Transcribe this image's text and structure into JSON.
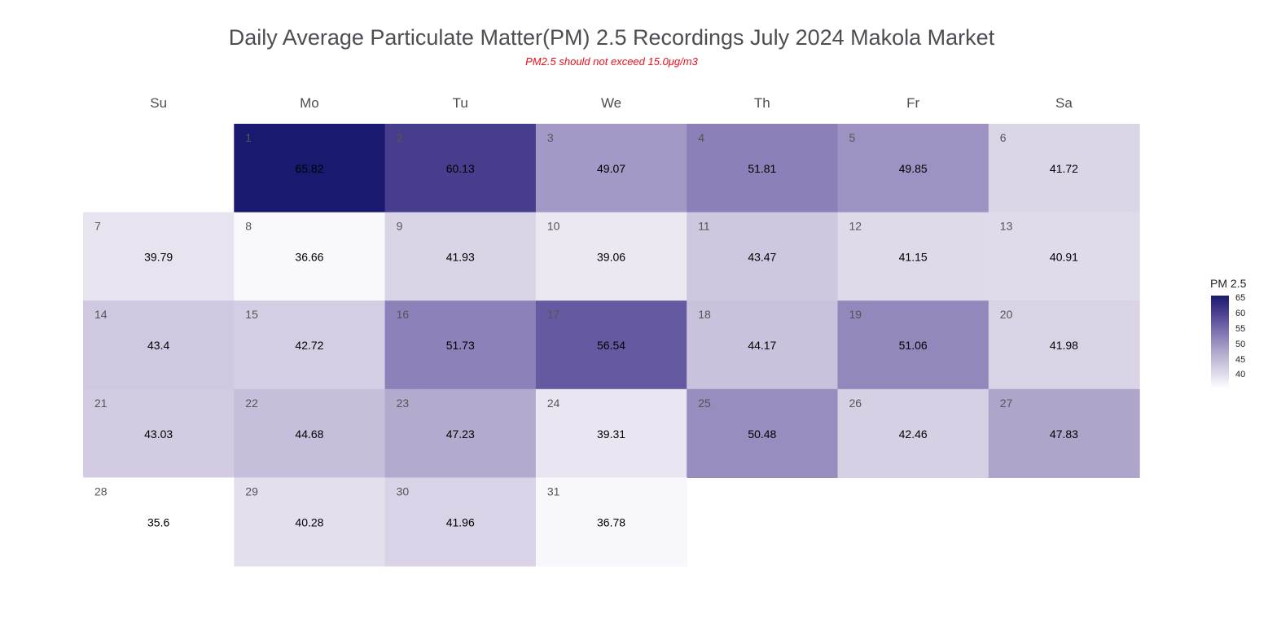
{
  "title": "Daily Average Particulate Matter(PM) 2.5 Recordings July 2024 Makola Market",
  "subtitle": "PM2.5 should not exceed 15.0μg/m3",
  "chart_data": {
    "type": "heatmap",
    "title": "Daily Average Particulate Matter(PM) 2.5 Recordings July 2024 Makola Market",
    "subtitle": "PM2.5 should not exceed 15.0μg/m3",
    "weekdays": [
      "Su",
      "Mo",
      "Tu",
      "We",
      "Th",
      "Fr",
      "Sa"
    ],
    "first_weekday_index": 1,
    "days": [
      1,
      2,
      3,
      4,
      5,
      6,
      7,
      8,
      9,
      10,
      11,
      12,
      13,
      14,
      15,
      16,
      17,
      18,
      19,
      20,
      21,
      22,
      23,
      24,
      25,
      26,
      27,
      28,
      29,
      30,
      31
    ],
    "values": [
      65.82,
      60.13,
      49.07,
      51.81,
      49.85,
      41.72,
      39.79,
      36.66,
      41.93,
      39.06,
      43.47,
      41.15,
      40.91,
      43.4,
      42.72,
      51.73,
      56.54,
      44.17,
      51.06,
      41.98,
      43.03,
      44.68,
      47.23,
      39.31,
      50.48,
      42.46,
      47.83,
      35.6,
      40.28,
      41.96,
      36.78
    ],
    "value_labels": [
      "65.82",
      "60.13",
      "49.07",
      "51.81",
      "49.85",
      "41.72",
      "39.79",
      "36.66",
      "41.93",
      "39.06",
      "43.47",
      "41.15",
      "40.91",
      "43.4",
      "42.72",
      "51.73",
      "56.54",
      "44.17",
      "51.06",
      "41.98",
      "43.03",
      "44.68",
      "47.23",
      "39.31",
      "50.48",
      "42.46",
      "47.83",
      "35.6",
      "40.28",
      "41.96",
      "36.78"
    ],
    "color_range": [
      35.6,
      65.82
    ],
    "colorscale": [
      "#ffffff",
      "#dcd6e8",
      "#b0a6cc",
      "#7d6fb0",
      "#4a3f8f",
      "#191970"
    ],
    "colorbar": {
      "title": "PM 2.5",
      "ticks": [
        40,
        45,
        50,
        55,
        60,
        65
      ],
      "tick_labels": [
        "40",
        "45",
        "50",
        "55",
        "60",
        "65"
      ]
    },
    "legend_placement": "right"
  }
}
